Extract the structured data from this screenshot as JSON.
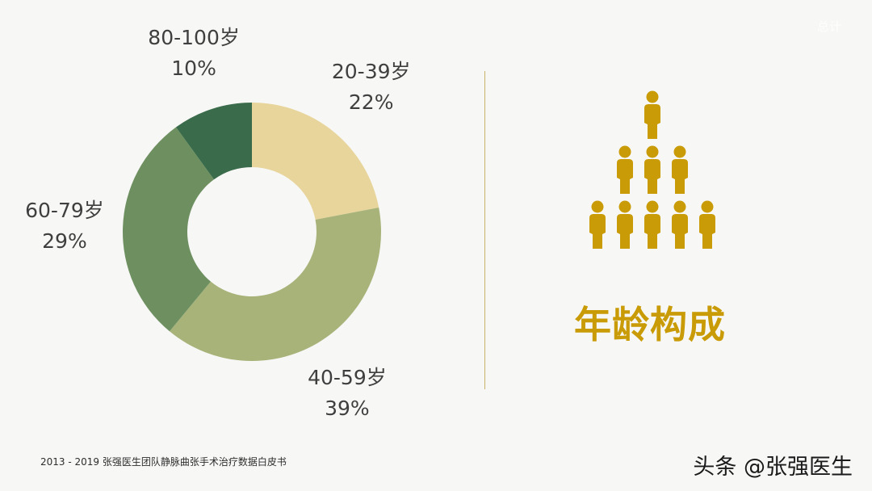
{
  "chart_data": {
    "type": "pie",
    "donut": true,
    "categories": [
      "20-39岁",
      "40-59岁",
      "60-79岁",
      "80-100岁"
    ],
    "values": [
      22,
      39,
      29,
      10
    ],
    "value_labels": [
      "22%",
      "39%",
      "29%",
      "10%"
    ],
    "colors": [
      "#e8d59c",
      "#a8b37a",
      "#6e9061",
      "#3a6b4b"
    ],
    "start_angle_deg": 0,
    "direction": "clockwise"
  },
  "panel": {
    "title": "年龄构成",
    "icon": "person-icon",
    "icon_color": "#c99b06",
    "icon_rows": [
      1,
      3,
      5
    ]
  },
  "footer": {
    "source": "2013 - 2019   张强医生团队静脉曲张手术治疗数据白皮书"
  },
  "watermarks": {
    "top": "总计",
    "bottom": "头条 @张强医生"
  },
  "colors": {
    "divider": "#c9b36a",
    "background": "#f7f7f5"
  }
}
